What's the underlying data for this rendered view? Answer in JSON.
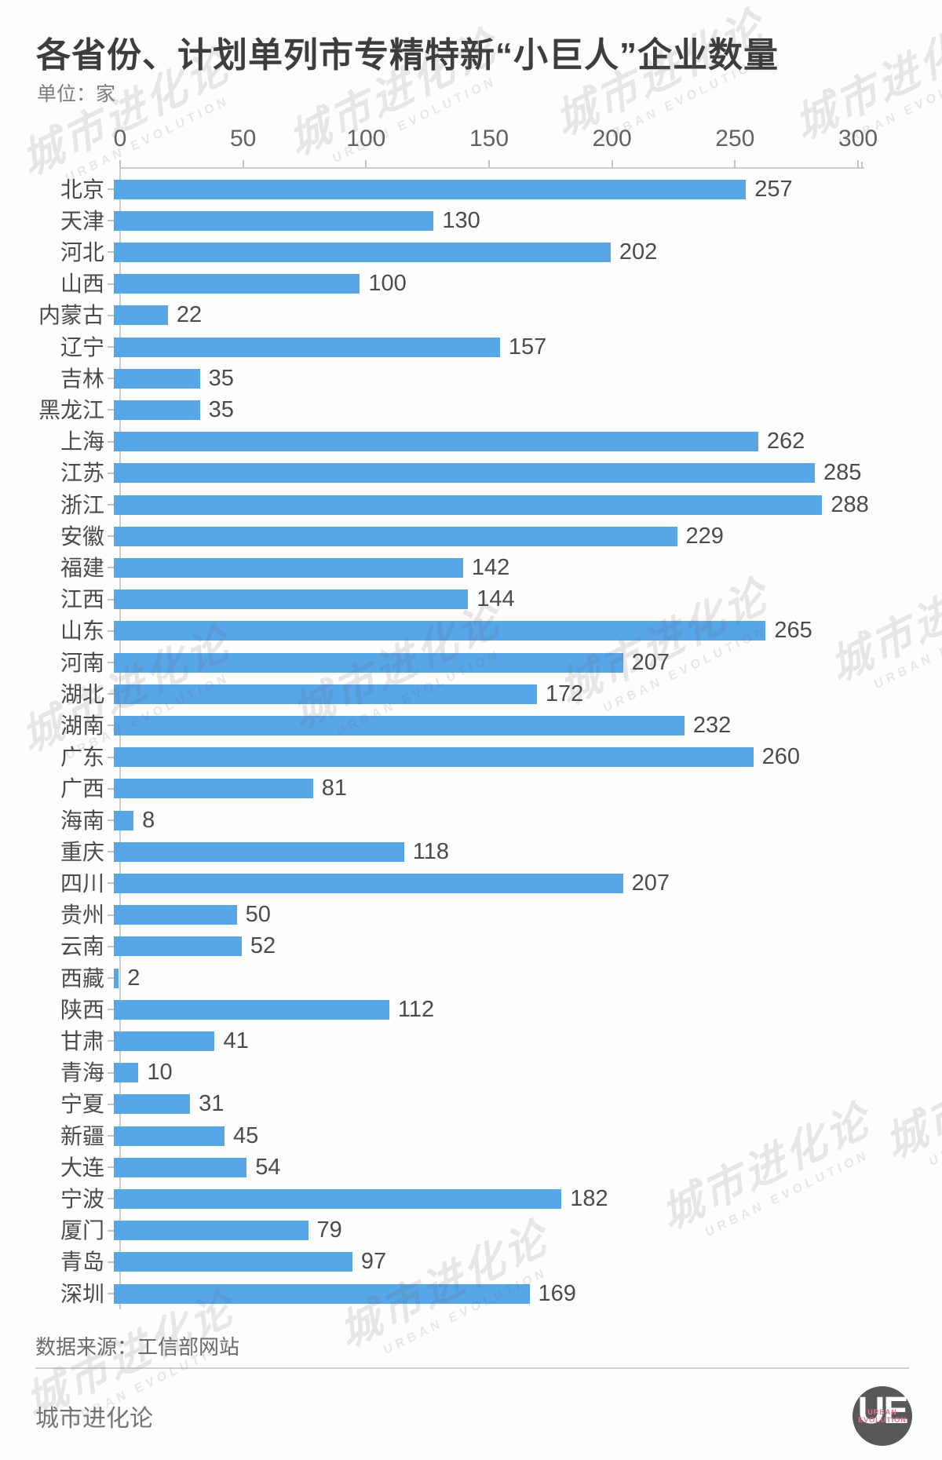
{
  "header": {
    "title": "各省份、计划单列市专精特新“小巨人”企业数量",
    "unit_label": "单位：家"
  },
  "chart_data": {
    "type": "bar",
    "orientation": "horizontal",
    "title": "各省份、计划单列市专精特新“小巨人”企业数量",
    "unit": "家",
    "xlim": [
      0,
      300
    ],
    "x_ticks": [
      0,
      50,
      100,
      150,
      200,
      250,
      300
    ],
    "grid": false,
    "legend": "none",
    "categories": [
      "北京",
      "天津",
      "河北",
      "山西",
      "内蒙古",
      "辽宁",
      "吉林",
      "黑龙江",
      "上海",
      "江苏",
      "浙江",
      "安徽",
      "福建",
      "江西",
      "山东",
      "河南",
      "湖北",
      "湖南",
      "广东",
      "广西",
      "海南",
      "重庆",
      "四川",
      "贵州",
      "云南",
      "西藏",
      "陕西",
      "甘肃",
      "青海",
      "宁夏",
      "新疆",
      "大连",
      "宁波",
      "厦门",
      "青岛",
      "深圳"
    ],
    "values": [
      257,
      130,
      202,
      100,
      22,
      157,
      35,
      35,
      262,
      285,
      288,
      229,
      142,
      144,
      265,
      207,
      172,
      232,
      260,
      81,
      8,
      118,
      207,
      50,
      52,
      2,
      112,
      41,
      10,
      31,
      45,
      54,
      182,
      79,
      97,
      169
    ]
  },
  "footer": {
    "source_label": "数据来源：工信部网站",
    "brand": "城市进化论"
  },
  "watermark": {
    "cn": "城市进化论",
    "en": "URBAN EVOLUTION"
  },
  "logo": {
    "initials": "UE",
    "line1": "URBAN",
    "line2": "EVOLUTION"
  },
  "colors": {
    "bar": "#57a6e8",
    "title_text": "#3d3d3d",
    "label_text": "#4b4b4b",
    "axis_line": "#cccccc",
    "logo_bg": "#58585a",
    "logo_pink": "#e0708e"
  }
}
